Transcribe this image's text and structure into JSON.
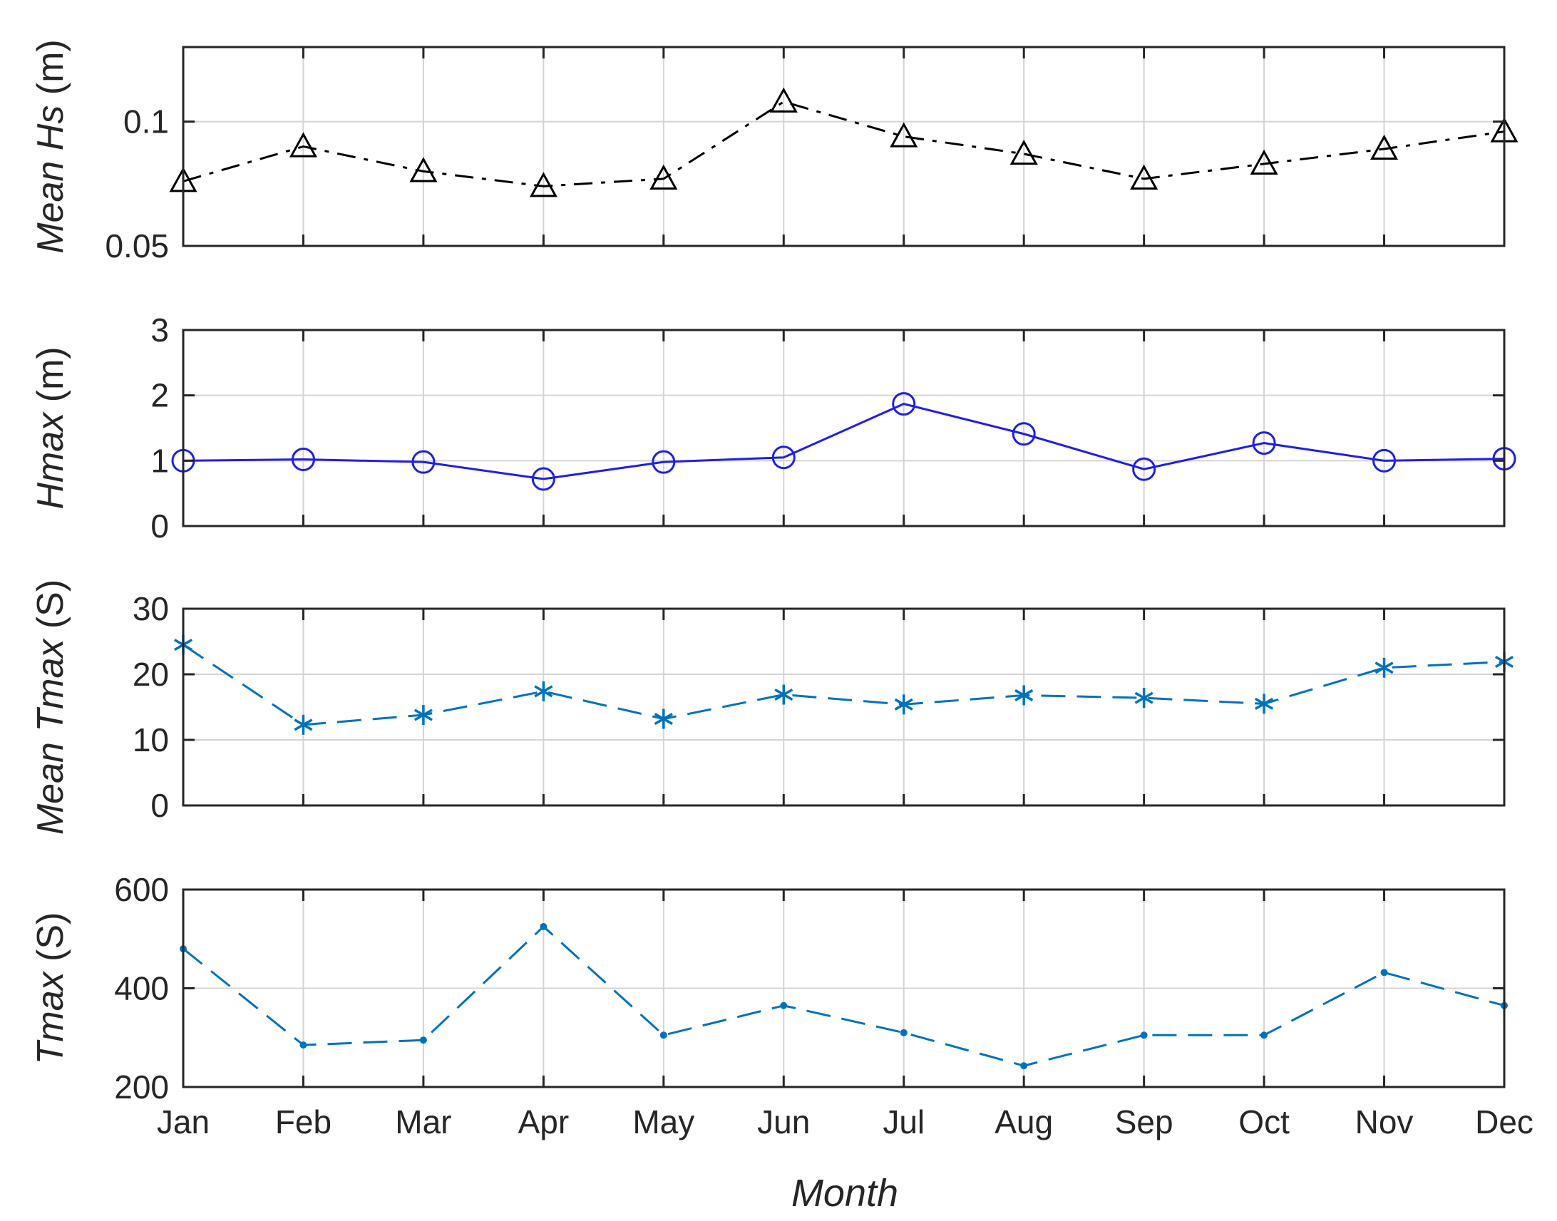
{
  "chart_data": [
    {
      "type": "line",
      "ylabel_italic": "Mean Hs",
      "ylabel_unit": " (m)",
      "categories": [
        "Jan",
        "Feb",
        "Mar",
        "Apr",
        "May",
        "Jun",
        "Jul",
        "Aug",
        "Sep",
        "Oct",
        "Nov",
        "Dec"
      ],
      "ylim": [
        0.05,
        0.13
      ],
      "yticks": [
        0.05,
        0.1
      ],
      "ytick_labels": [
        "0.05",
        "0.1"
      ],
      "grid": true,
      "series": [
        {
          "values": [
            0.076,
            0.09,
            0.08,
            0.074,
            0.077,
            0.108,
            0.094,
            0.087,
            0.077,
            0.083,
            0.089,
            0.096
          ],
          "color": "#000000",
          "line_style": "dashdot",
          "marker": "triangle"
        }
      ]
    },
    {
      "type": "line",
      "ylabel_italic": "Hmax",
      "ylabel_unit": " (m)",
      "categories": [
        "Jan",
        "Feb",
        "Mar",
        "Apr",
        "May",
        "Jun",
        "Jul",
        "Aug",
        "Sep",
        "Oct",
        "Nov",
        "Dec"
      ],
      "ylim": [
        0,
        3
      ],
      "yticks": [
        0,
        1,
        2,
        3
      ],
      "ytick_labels": [
        "0",
        "1",
        "2",
        "3"
      ],
      "grid": true,
      "series": [
        {
          "values": [
            1.0,
            1.02,
            0.98,
            0.72,
            0.98,
            1.05,
            1.87,
            1.41,
            0.87,
            1.27,
            1.0,
            1.03
          ],
          "color": "#1f1fe8",
          "line_style": "solid",
          "marker": "circle"
        }
      ]
    },
    {
      "type": "line",
      "ylabel_italic": "Mean Tmax",
      "ylabel_unit": " (S)",
      "categories": [
        "Jan",
        "Feb",
        "Mar",
        "Apr",
        "May",
        "Jun",
        "Jul",
        "Aug",
        "Sep",
        "Oct",
        "Nov",
        "Dec"
      ],
      "ylim": [
        0,
        30
      ],
      "yticks": [
        0,
        10,
        20,
        30
      ],
      "ytick_labels": [
        "0",
        "10",
        "20",
        "30"
      ],
      "grid": true,
      "series": [
        {
          "values": [
            24.5,
            12.3,
            13.8,
            17.4,
            13.2,
            16.9,
            15.4,
            16.8,
            16.4,
            15.5,
            21.0,
            21.9
          ],
          "color": "#0072bd",
          "line_style": "dashed",
          "marker": "asterisk"
        }
      ]
    },
    {
      "type": "line",
      "ylabel_italic": "Tmax",
      "ylabel_unit": " (S)",
      "categories": [
        "Jan",
        "Feb",
        "Mar",
        "Apr",
        "May",
        "Jun",
        "Jul",
        "Aug",
        "Sep",
        "Oct",
        "Nov",
        "Dec"
      ],
      "ylim": [
        200,
        600
      ],
      "yticks": [
        200,
        400,
        600
      ],
      "ytick_labels": [
        "200",
        "400",
        "600"
      ],
      "grid": true,
      "xlabel": "Month",
      "series": [
        {
          "values": [
            480,
            285,
            295,
            525,
            305,
            365,
            310,
            243,
            305,
            305,
            432,
            365
          ],
          "color": "#0072bd",
          "line_style": "dashed",
          "marker": "dot"
        }
      ]
    }
  ]
}
